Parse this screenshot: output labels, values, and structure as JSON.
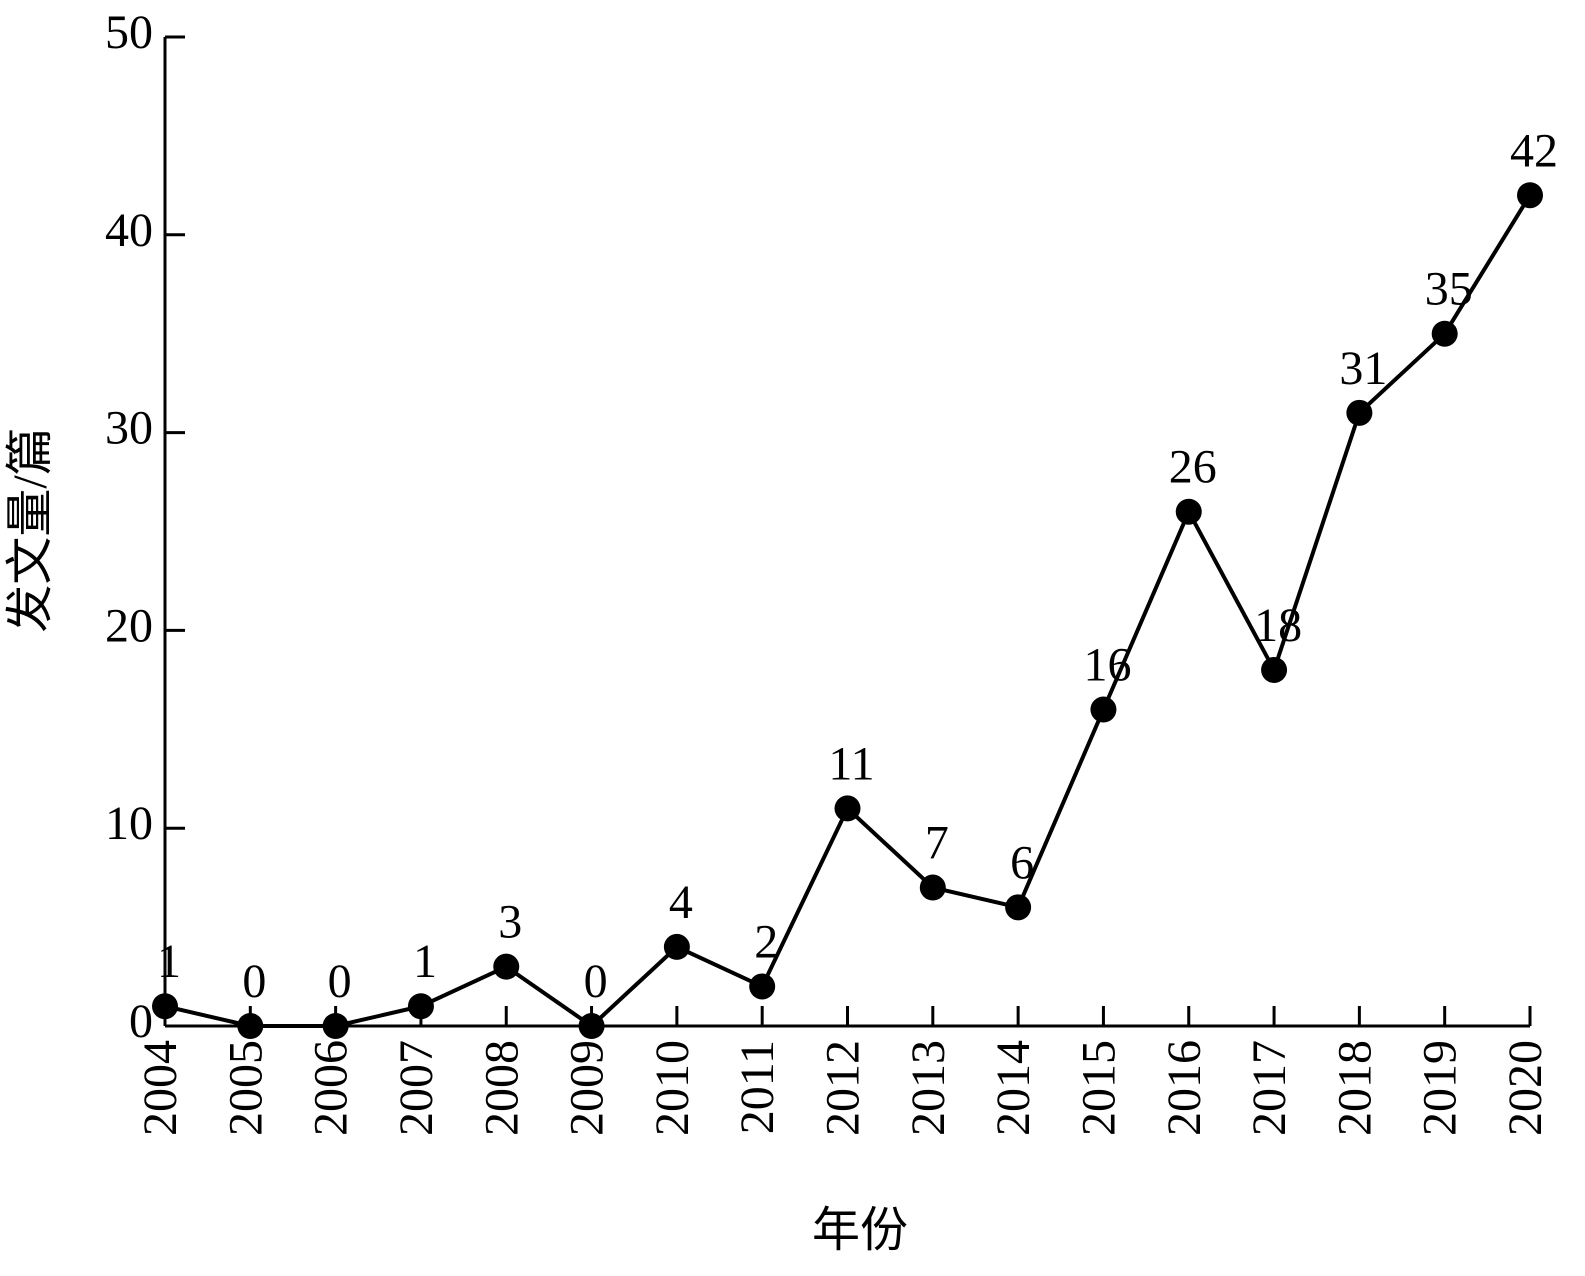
{
  "chart_data": {
    "type": "line",
    "xlabel": "年份",
    "ylabel": "发文量/篇",
    "categories": [
      "2004",
      "2005",
      "2006",
      "2007",
      "2008",
      "2009",
      "2010",
      "2011",
      "2012",
      "2013",
      "2014",
      "2015",
      "2016",
      "2017",
      "2018",
      "2019",
      "2020"
    ],
    "values": [
      1,
      0,
      0,
      1,
      3,
      0,
      4,
      2,
      11,
      7,
      6,
      16,
      26,
      18,
      31,
      35,
      42
    ],
    "color": "#000000",
    "ylim": [
      0,
      50
    ],
    "yticks": [
      0,
      10,
      20,
      30,
      40,
      50
    ],
    "grid": false
  }
}
